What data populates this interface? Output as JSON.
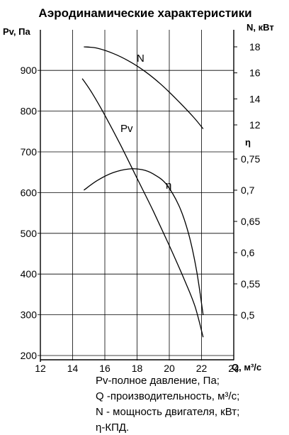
{
  "chart_data": {
    "type": "line",
    "title": "Аэродинамические характеристики",
    "x_axis": {
      "label": "Q, м³/с",
      "min": 12,
      "max": 24,
      "ticks": [
        "12",
        "14",
        "16",
        "18",
        "20",
        "22",
        "24"
      ]
    },
    "y_axes": {
      "pressure": {
        "label": "Pv, Па",
        "min": 200,
        "max": 1000,
        "ticks": [
          "200",
          "300",
          "400",
          "500",
          "600",
          "700",
          "800",
          "900"
        ]
      },
      "power": {
        "label": "N, кВт",
        "ticks": [
          {
            "text": "12",
            "value": 12
          },
          {
            "text": "14",
            "value": 14
          },
          {
            "text": "16",
            "value": 16
          },
          {
            "text": "18",
            "value": 18
          }
        ]
      },
      "efficiency": {
        "label": "η",
        "ticks": [
          {
            "text": "0,5",
            "value": 0.5
          },
          {
            "text": "0,55",
            "value": 0.55
          },
          {
            "text": "0,6",
            "value": 0.6
          },
          {
            "text": "0,65",
            "value": 0.65
          },
          {
            "text": "0,7",
            "value": 0.7
          },
          {
            "text": "0,75",
            "value": 0.75
          }
        ]
      }
    },
    "series": [
      {
        "name": "N",
        "axis": "power",
        "points": [
          [
            14.7,
            18.0
          ],
          [
            15.5,
            17.9
          ],
          [
            16.5,
            17.5
          ],
          [
            17.5,
            16.9
          ],
          [
            18.5,
            16.1
          ],
          [
            19.5,
            15.1
          ],
          [
            20.5,
            13.9
          ],
          [
            21.5,
            12.6
          ],
          [
            22.1,
            11.7
          ]
        ]
      },
      {
        "name": "Pv",
        "axis": "pressure",
        "points": [
          [
            14.6,
            880
          ],
          [
            15.2,
            845
          ],
          [
            16.0,
            790
          ],
          [
            17.0,
            715
          ],
          [
            18.0,
            635
          ],
          [
            19.0,
            555
          ],
          [
            20.0,
            470
          ],
          [
            21.0,
            380
          ],
          [
            21.6,
            320
          ],
          [
            22.1,
            245
          ]
        ]
      },
      {
        "name": "η",
        "axis": "efficiency",
        "points": [
          [
            14.7,
            0.7
          ],
          [
            15.5,
            0.715
          ],
          [
            16.5,
            0.728
          ],
          [
            17.5,
            0.734
          ],
          [
            18.3,
            0.733
          ],
          [
            19.0,
            0.726
          ],
          [
            19.8,
            0.71
          ],
          [
            20.6,
            0.675
          ],
          [
            21.2,
            0.63
          ],
          [
            21.7,
            0.57
          ],
          [
            22.1,
            0.5
          ]
        ]
      }
    ],
    "legend": [
      "Pv-полное давление, Па;",
      "Q -производительность, м³/с;",
      "N - мощность двигателя, кВт;",
      "η-КПД."
    ]
  }
}
